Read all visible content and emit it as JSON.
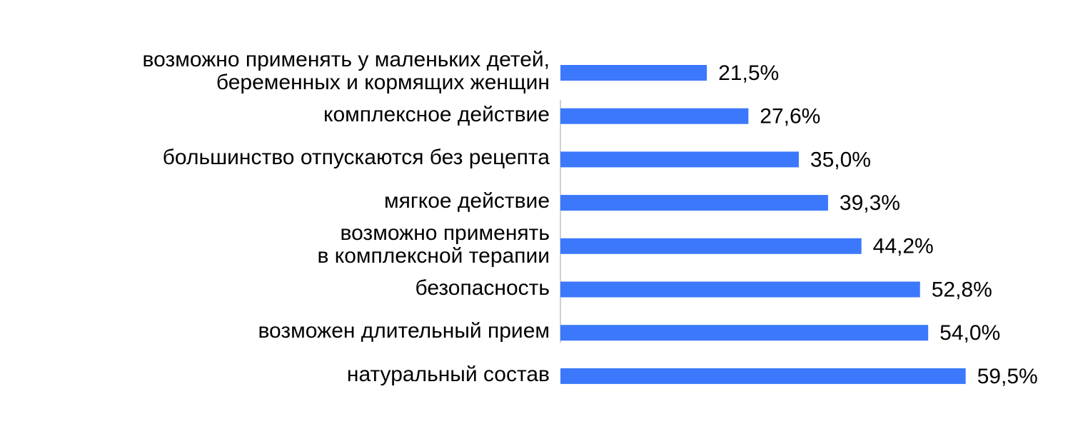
{
  "chart_data": {
    "type": "barh",
    "categories": [
      "возможно применять у маленьких детей,\nберeменных и кормящих женщин",
      "комплексное действие",
      "большинство отпускаются без рецепта",
      "мягкое действие",
      "возможно применять\nв комплексной терапии",
      "безопасность",
      "возможен длительный прием",
      "натуральный состав"
    ],
    "values": [
      21.5,
      27.6,
      35.0,
      39.3,
      44.2,
      52.8,
      54.0,
      59.5
    ],
    "value_labels": [
      "21,5%",
      "27,6%",
      "35,0%",
      "39,3%",
      "44,2%",
      "52,8%",
      "54,0%",
      "59,5%"
    ],
    "color": "#3b78fb"
  }
}
